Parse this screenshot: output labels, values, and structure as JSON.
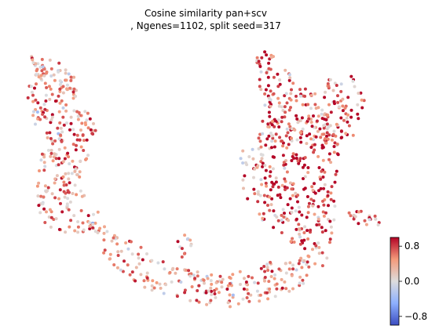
{
  "chart_data": {
    "type": "scatter",
    "title_line1": "Cosine similarity pan+scv",
    "title_line2": ", Ngenes=1102, split seed=317",
    "xlabel": "",
    "ylabel": "",
    "axes_visible": false,
    "grid": false,
    "colormap": {
      "name": "coolwarm",
      "range": [
        -1.0,
        1.0
      ],
      "ticks": [
        0.8,
        0.0,
        -0.8
      ],
      "tick_labels": [
        "0.8",
        "0.0",
        "−0.8"
      ],
      "stops": [
        "#3b4cc0",
        "#8db0fe",
        "#dddddd",
        "#f49a7b",
        "#b40426"
      ]
    },
    "point_count": 1102,
    "description_of_value_field": "each point value = cosine similarity in [-1, 1]",
    "regions": [
      {
        "name": "upper-left arm",
        "dominant_value": 0.5
      },
      {
        "name": "left lobe",
        "dominant_value": 0.55
      },
      {
        "name": "bottom arc",
        "dominant_value": 0.45
      },
      {
        "name": "right column",
        "dominant_value": 0.9
      },
      {
        "name": "right top",
        "dominant_value": 0.7
      },
      {
        "name": "small right tail",
        "dominant_value": 0.85
      }
    ]
  }
}
